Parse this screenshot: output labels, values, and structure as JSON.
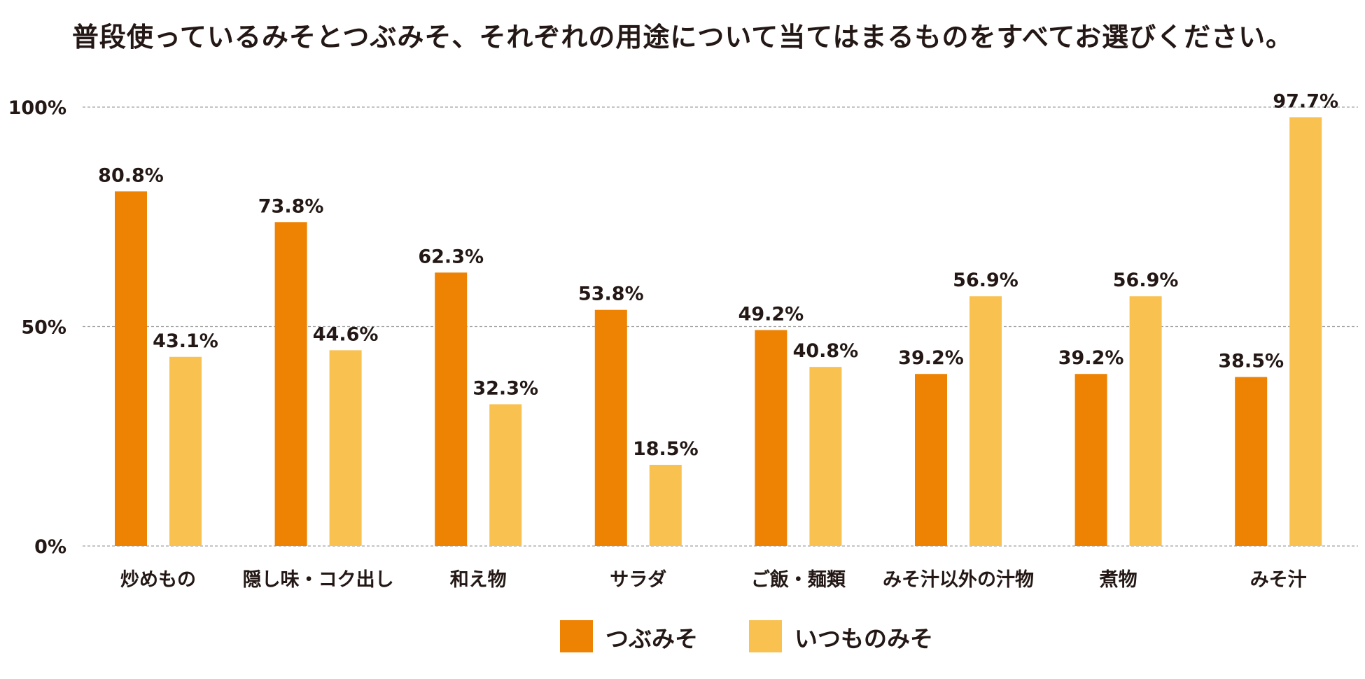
{
  "chart_data": {
    "type": "bar",
    "title": "普段使っているみそとつぶみそ、それぞれの用途について当てはまるものをすべてお選びください。",
    "xlabel": "",
    "ylabel": "",
    "ylim": [
      0,
      100
    ],
    "yticks": [
      {
        "value": 0,
        "label": "0%"
      },
      {
        "value": 50,
        "label": "50%"
      },
      {
        "value": 100,
        "label": "100%"
      }
    ],
    "grid": true,
    "legend_position": "bottom-center",
    "categories": [
      "炒めもの",
      "隠し味・コク出し",
      "和え物",
      "サラダ",
      "ご飯・麺類",
      "みそ汁以外の汁物",
      "煮物",
      "みそ汁"
    ],
    "series": [
      {
        "name": "つぶみそ",
        "color": "#EE8203",
        "values": [
          80.8,
          73.8,
          62.3,
          53.8,
          49.2,
          39.2,
          39.2,
          38.5
        ],
        "labels": [
          "80.8%",
          "73.8%",
          "62.3%",
          "53.8%",
          "49.2%",
          "39.2%",
          "39.2%",
          "38.5%"
        ]
      },
      {
        "name": "いつものみそ",
        "color": "#F8C150",
        "values": [
          43.1,
          44.6,
          32.3,
          18.5,
          40.8,
          56.9,
          56.9,
          97.7
        ],
        "labels": [
          "43.1%",
          "44.6%",
          "32.3%",
          "18.5%",
          "40.8%",
          "56.9%",
          "56.9%",
          "97.7%"
        ]
      }
    ]
  }
}
